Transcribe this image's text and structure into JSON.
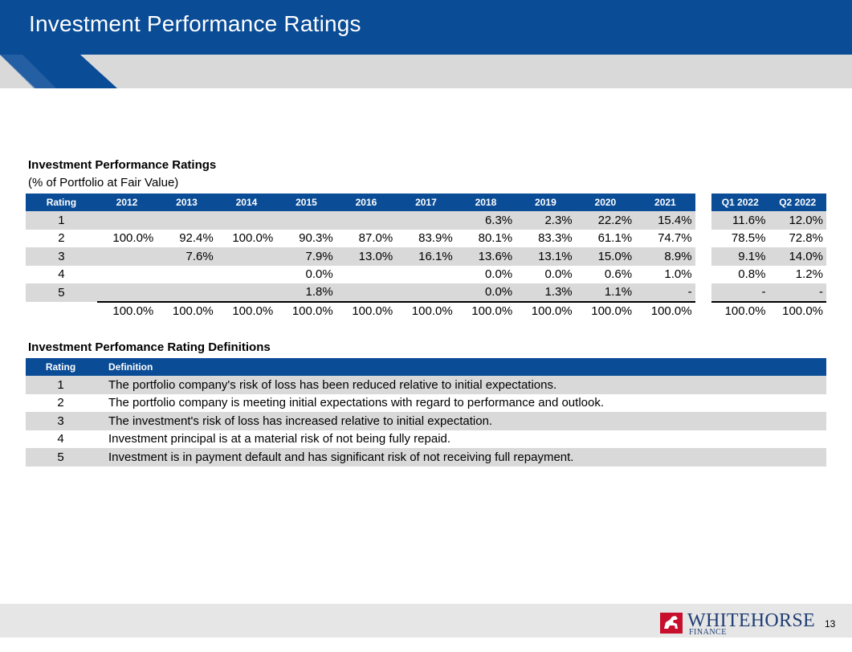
{
  "header": {
    "title": "Investment Performance Ratings"
  },
  "ratings_section": {
    "title": "Investment Performance Ratings",
    "subtitle": "(% of Portfolio at Fair Value)"
  },
  "ratings_table": {
    "rating_header": "Rating",
    "year_headers": [
      "2012",
      "2013",
      "2014",
      "2015",
      "2016",
      "2017",
      "2018",
      "2019",
      "2020",
      "2021"
    ],
    "quarter_headers": [
      "Q1 2022",
      "Q2 2022"
    ],
    "rows": [
      {
        "rating": "1",
        "years": [
          "",
          "",
          "",
          "",
          "",
          "",
          "6.3%",
          "2.3%",
          "22.2%",
          "15.4%"
        ],
        "quarters": [
          "11.6%",
          "12.0%"
        ]
      },
      {
        "rating": "2",
        "years": [
          "100.0%",
          "92.4%",
          "100.0%",
          "90.3%",
          "87.0%",
          "83.9%",
          "80.1%",
          "83.3%",
          "61.1%",
          "74.7%"
        ],
        "quarters": [
          "78.5%",
          "72.8%"
        ]
      },
      {
        "rating": "3",
        "years": [
          "",
          "7.6%",
          "",
          "7.9%",
          "13.0%",
          "16.1%",
          "13.6%",
          "13.1%",
          "15.0%",
          "8.9%"
        ],
        "quarters": [
          "9.1%",
          "14.0%"
        ]
      },
      {
        "rating": "4",
        "years": [
          "",
          "",
          "",
          "0.0%",
          "",
          "",
          "0.0%",
          "0.0%",
          "0.6%",
          "1.0%"
        ],
        "quarters": [
          "0.8%",
          "1.2%"
        ]
      },
      {
        "rating": "5",
        "years": [
          "",
          "",
          "",
          "1.8%",
          "",
          "",
          "0.0%",
          "1.3%",
          "1.1%",
          "-"
        ],
        "quarters": [
          "-",
          "-"
        ]
      }
    ],
    "totals": {
      "years": [
        "100.0%",
        "100.0%",
        "100.0%",
        "100.0%",
        "100.0%",
        "100.0%",
        "100.0%",
        "100.0%",
        "100.0%",
        "100.0%"
      ],
      "quarters": [
        "100.0%",
        "100.0%"
      ]
    }
  },
  "definitions_section": {
    "title": "Investment Perfomance Rating Definitions"
  },
  "definitions_table": {
    "rating_header": "Rating",
    "definition_header": "Definition",
    "rows": [
      {
        "rating": "1",
        "definition": "The portfolio company's risk of loss has been reduced relative to initial expectations."
      },
      {
        "rating": "2",
        "definition": "The portfolio company is meeting initial expectations with regard to performance and outlook."
      },
      {
        "rating": "3",
        "definition": "The investment's risk of loss has increased relative to initial expectation."
      },
      {
        "rating": "4",
        "definition": "Investment principal is at a material risk of not being fully repaid."
      },
      {
        "rating": "5",
        "definition": "Investment is in payment default and has significant risk of not receiving full repayment."
      }
    ]
  },
  "footer": {
    "logo_name": "WHITEHORSE",
    "logo_sub": "FINANCE",
    "logo_icon": "horse-logo-icon",
    "page_number": "13"
  },
  "colors": {
    "brand_blue": "#0a4c96",
    "row_shade": "#d9d9d9",
    "logo_red": "#c8102e",
    "logo_navy": "#1f3d73"
  }
}
